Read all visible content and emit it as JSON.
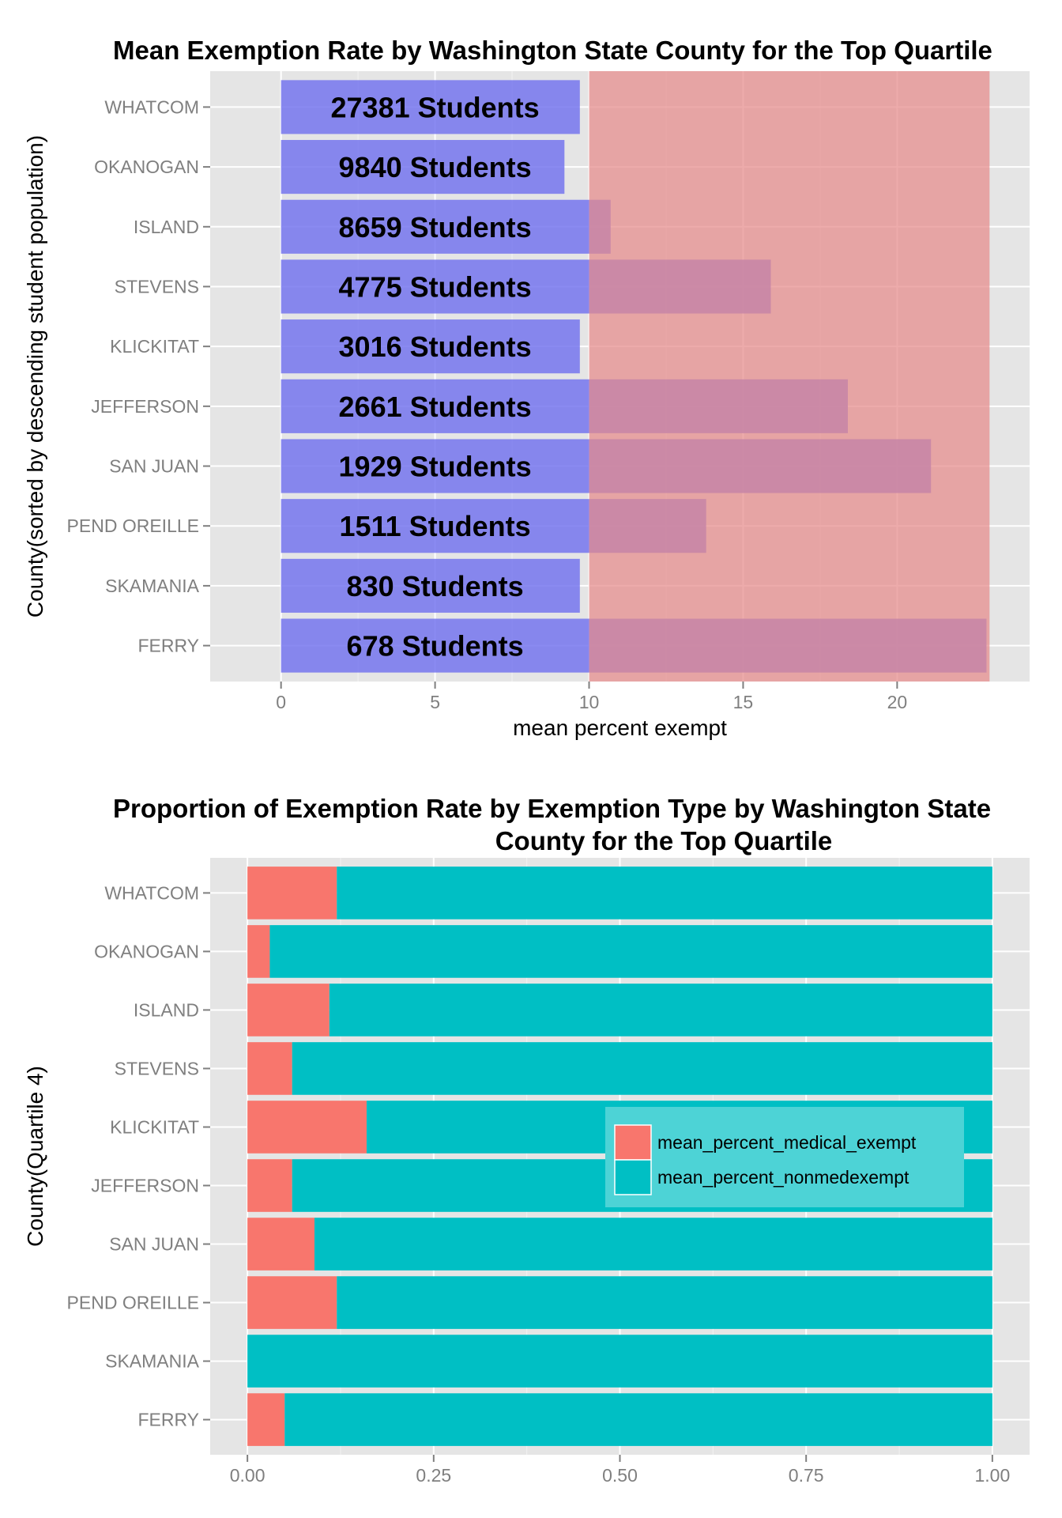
{
  "chart_data": [
    {
      "type": "bar",
      "orientation": "horizontal",
      "title": "Mean Exemption Rate by Washington State County for the Top Quartile",
      "xlabel": "mean percent exempt",
      "ylabel": "County(sorted by descending student population)",
      "categories": [
        "WHATCOM",
        "OKANOGAN",
        "ISLAND",
        "STEVENS",
        "KLICKITAT",
        "JEFFERSON",
        "SAN JUAN",
        "PEND OREILLE",
        "SKAMANIA",
        "FERRY"
      ],
      "series": [
        {
          "values": [
            9.7,
            9.2,
            10.7,
            15.9,
            9.7,
            18.4,
            21.1,
            13.8,
            9.7,
            22.9
          ],
          "color": "#7575ee"
        }
      ],
      "bar_labels": [
        "27381 Students",
        "9840 Students",
        "8659 Students",
        "4775 Students",
        "3016 Students",
        "2661 Students",
        "1929 Students",
        "1511 Students",
        "830 Students",
        "678 Students"
      ],
      "highlight_band": {
        "from": 10,
        "to": 23,
        "color": "#e68a8a"
      },
      "xlim": [
        -2.3,
        24.3
      ],
      "xticks": [
        "0",
        "5",
        "10",
        "15",
        "20"
      ],
      "xtick_values": [
        0,
        5,
        10,
        15,
        20
      ],
      "grid": true,
      "background": "#e5e5e5"
    },
    {
      "type": "bar",
      "orientation": "horizontal",
      "stacked": true,
      "title": "Proportion of Exemption Rate by Exemption Type by Washington State County for the Top Quartile",
      "title_lines": [
        "Proportion of Exemption Rate by Exemption Type by Washington State",
        "County for the Top Quartile"
      ],
      "xlabel": "",
      "ylabel": "County(Quartile 4)",
      "categories": [
        "WHATCOM",
        "OKANOGAN",
        "ISLAND",
        "STEVENS",
        "KLICKITAT",
        "JEFFERSON",
        "SAN JUAN",
        "PEND OREILLE",
        "SKAMANIA",
        "FERRY"
      ],
      "series": [
        {
          "name": "mean_percent_medical_exempt",
          "values": [
            0.12,
            0.03,
            0.11,
            0.06,
            0.16,
            0.06,
            0.09,
            0.12,
            0.0,
            0.05
          ],
          "color": "#f8766d"
        },
        {
          "name": "mean_percent_nonmedexempt",
          "values": [
            0.88,
            0.97,
            0.89,
            0.94,
            0.84,
            0.94,
            0.91,
            0.88,
            1.0,
            0.95
          ],
          "color": "#00bfc4"
        }
      ],
      "xlim": [
        -0.05,
        1.05
      ],
      "xticks": [
        "0.00",
        "0.25",
        "0.50",
        "0.75",
        "1.00"
      ],
      "xtick_values": [
        0,
        0.25,
        0.5,
        0.75,
        1
      ],
      "legend_position": "inside-right",
      "grid": true,
      "background": "#e5e5e5"
    }
  ]
}
